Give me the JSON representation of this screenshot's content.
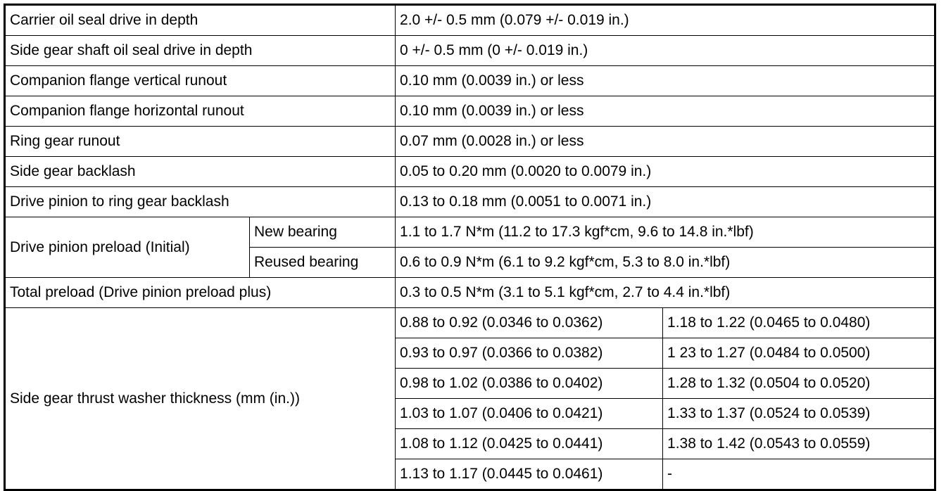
{
  "table": {
    "rows": [
      [
        "Carrier oil seal drive in depth",
        "2.0 +/- 0.5 mm (0.079 +/- 0.019 in.)"
      ],
      [
        "Side gear shaft oil seal drive in depth",
        "0 +/- 0.5 mm (0 +/- 0.019 in.)"
      ],
      [
        "Companion flange vertical runout",
        "0.10 mm (0.0039 in.) or less"
      ],
      [
        "Companion flange horizontal runout",
        "0.10 mm (0.0039 in.) or less"
      ],
      [
        "Ring gear runout",
        "0.07 mm (0.0028 in.) or less"
      ],
      [
        "Side gear backlash",
        "0.05 to 0.20 mm (0.0020 to 0.0079 in.)"
      ],
      [
        "Drive pinion to ring gear backlash",
        "0.13 to 0.18 mm (0.0051 to 0.0071 in.)"
      ],
      [
        "Drive pinion preload (Initial)",
        "New bearing",
        "1.1 to 1.7 N*m (11.2 to 17.3 kgf*cm, 9.6 to 14.8 in.*lbf)"
      ],
      [
        "Reused bearing",
        "0.6 to 0.9 N*m (6.1 to 9.2 kgf*cm, 5.3 to 8.0 in.*lbf)"
      ],
      [
        "Total preload (Drive pinion preload plus)",
        "0.3 to 0.5 N*m (3.1 to 5.1 kgf*cm, 2.7 to 4.4 in.*lbf)"
      ],
      [
        "Side gear thrust washer thickness (mm (in.))",
        "0.88 to 0.92 (0.0346 to 0.0362)",
        "1.18 to 1.22 (0.0465 to 0.0480)"
      ],
      [
        "0.93 to 0.97 (0.0366 to 0.0382)",
        "1 23 to 1.27 (0.0484 to 0.0500)"
      ],
      [
        "0.98 to 1.02 (0.0386 to 0.0402)",
        "1.28 to 1.32 (0.0504 to 0.0520)"
      ],
      [
        "1.03 to 1.07 (0.0406 to 0.0421)",
        "1.33 to 1.37 (0.0524 to 0.0539)"
      ],
      [
        "1.08 to 1.12 (0.0425 to 0.0441)",
        "1.38 to 1.42 (0.0543 to 0.0559)"
      ],
      [
        "1.13 to 1.17 (0.0445 to 0.0461)",
        "-"
      ]
    ]
  }
}
